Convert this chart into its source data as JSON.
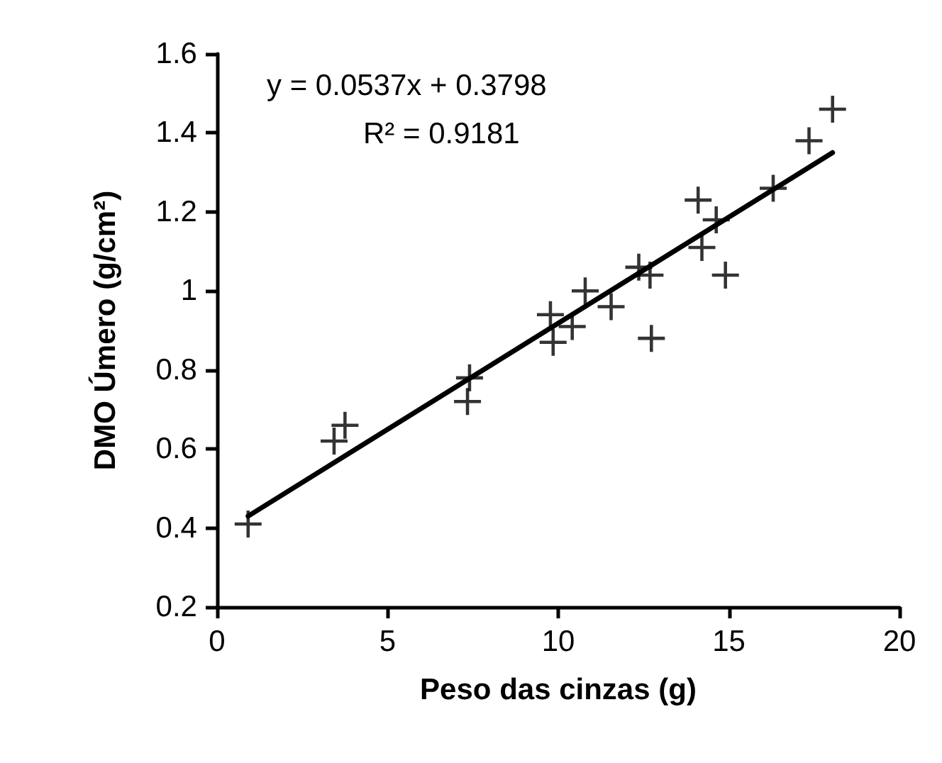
{
  "chart_data": {
    "type": "scatter",
    "xlabel": "Peso das cinzas (g)",
    "ylabel": "DMO Úmero (g/cm²)",
    "annotations": [
      "y = 0.0537x + 0.3798",
      "R² = 0.9181"
    ],
    "xlim": [
      0,
      20
    ],
    "xticks": [
      0,
      5,
      10,
      15,
      20
    ],
    "ylim": [
      0.2,
      1.6
    ],
    "yticks": [
      0.2,
      0.4,
      0.6,
      0.8,
      1,
      1.2,
      1.4,
      1.6
    ],
    "grid": false,
    "series": [
      {
        "marker": "cross",
        "color": "#000000",
        "x": [
          0.91,
          3.43,
          3.75,
          7.4,
          7.34,
          9.77,
          9.85,
          10.41,
          10.79,
          11.55,
          12.69,
          12.36,
          12.73,
          14.1,
          14.63,
          14.21,
          14.9,
          16.3,
          17.35,
          18.04
        ],
        "values": [
          0.41,
          0.62,
          0.66,
          0.78,
          0.72,
          0.94,
          0.87,
          0.91,
          1.0,
          0.96,
          1.04,
          1.06,
          0.88,
          1.23,
          1.18,
          1.11,
          1.04,
          1.26,
          1.38,
          1.46
        ]
      },
      {
        "type": "line",
        "marker": "none",
        "color": "#000000",
        "x": [
          0.91,
          18.04
        ],
        "values": [
          0.43,
          1.35
        ]
      }
    ]
  }
}
